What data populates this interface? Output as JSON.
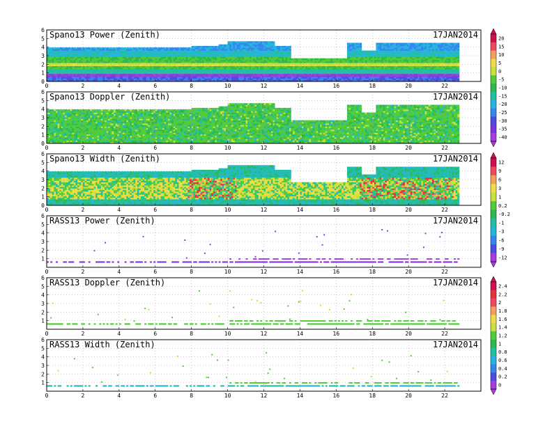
{
  "chart_data": [
    {
      "type": "heatmap",
      "title": "Spano13 Power (Zenith)",
      "date": "17JAN2014",
      "x_ticks": [
        "0",
        "2",
        "4",
        "6",
        "8",
        "10",
        "12",
        "14",
        "16",
        "18",
        "20",
        "22"
      ],
      "y_ticks": [
        "0",
        "1",
        "2",
        "3",
        "4",
        "5",
        "6"
      ],
      "xlim": [
        0,
        24
      ],
      "ylim": [
        0,
        6
      ],
      "grid": true,
      "colorbar": {
        "labels": [
          "20",
          "15",
          "10",
          "5",
          "0",
          "-5",
          "-10",
          "-15",
          "-20",
          "-25",
          "-30",
          "-35",
          "-40"
        ],
        "colors": [
          "#d0104d",
          "#f0485a",
          "#f2a05a",
          "#eedc48",
          "#c8e040",
          "#52cc3a",
          "#2fb850",
          "#22c0a0",
          "#24b6dc",
          "#3686ee",
          "#4c4ce0",
          "#7a34d8",
          "#a83ce0"
        ]
      }
    },
    {
      "type": "heatmap",
      "title": "Spano13 Doppler (Zenith)",
      "date": "17JAN2014",
      "x_ticks": [
        "0",
        "2",
        "4",
        "6",
        "8",
        "10",
        "12",
        "14",
        "16",
        "18",
        "20",
        "22"
      ],
      "y_ticks": [
        "0",
        "1",
        "2",
        "3",
        "4",
        "5",
        "6"
      ],
      "xlim": [
        0,
        24
      ],
      "ylim": [
        0,
        6
      ],
      "grid": true
    },
    {
      "type": "heatmap",
      "title": "Spano13 Width (Zenith)",
      "date": "17JAN2014",
      "x_ticks": [
        "0",
        "2",
        "4",
        "6",
        "8",
        "10",
        "12",
        "14",
        "16",
        "18",
        "20",
        "22"
      ],
      "y_ticks": [
        "0",
        "1",
        "2",
        "3",
        "4",
        "5",
        "6"
      ],
      "xlim": [
        0,
        24
      ],
      "ylim": [
        0,
        6
      ],
      "grid": true,
      "colorbar": {
        "labels": [
          "12",
          "9",
          "6",
          "3",
          "1",
          "0.2",
          "-0.2",
          "-1",
          "-3",
          "-6",
          "-9",
          "-12"
        ],
        "colors": [
          "#d0104d",
          "#f0485a",
          "#f2a05a",
          "#eedc48",
          "#c8e040",
          "#52cc3a",
          "#2fb850",
          "#22c0a0",
          "#24b6dc",
          "#3686ee",
          "#4c4ce0",
          "#a83ce0"
        ]
      }
    },
    {
      "type": "heatmap",
      "title": "RASS13 Power (Zenith)",
      "date": "17JAN2014",
      "x_ticks": [
        "0",
        "2",
        "4",
        "6",
        "8",
        "10",
        "12",
        "14",
        "16",
        "18",
        "20",
        "22"
      ],
      "y_ticks": [
        "1",
        "2",
        "3",
        "4",
        "5",
        "6"
      ],
      "xlim": [
        0,
        24
      ],
      "ylim": [
        0,
        6
      ],
      "grid": true
    },
    {
      "type": "heatmap",
      "title": "RASS13 Doppler (Zenith)",
      "date": "17JAN2014",
      "x_ticks": [
        "0",
        "2",
        "4",
        "6",
        "8",
        "10",
        "12",
        "14",
        "16",
        "18",
        "20",
        "22"
      ],
      "y_ticks": [
        "1",
        "2",
        "3",
        "4",
        "5",
        "6"
      ],
      "xlim": [
        0,
        24
      ],
      "ylim": [
        0,
        6
      ],
      "grid": true,
      "colorbar": {
        "labels": [
          "2.4",
          "2.2",
          "2",
          "1.8",
          "1.6",
          "1.4",
          "1.2",
          "1",
          "0.8",
          "0.6",
          "0.4",
          "0.2",
          "0"
        ],
        "colors": [
          "#d0104d",
          "#e8303e",
          "#f0485a",
          "#f2a05a",
          "#eedc48",
          "#c8e040",
          "#52cc3a",
          "#2fb850",
          "#22c0a0",
          "#24b6dc",
          "#3686ee",
          "#4c4ce0",
          "#a83ce0"
        ]
      }
    },
    {
      "type": "heatmap",
      "title": "RASS13 Width (Zenith)",
      "date": "17JAN2014",
      "x_ticks": [
        "0",
        "2",
        "4",
        "6",
        "8",
        "10",
        "12",
        "14",
        "16",
        "18",
        "20",
        "22"
      ],
      "y_ticks": [
        "1",
        "2",
        "3",
        "4",
        "5",
        "6"
      ],
      "xlim": [
        0,
        24
      ],
      "ylim": [
        0,
        6
      ],
      "grid": true
    }
  ]
}
